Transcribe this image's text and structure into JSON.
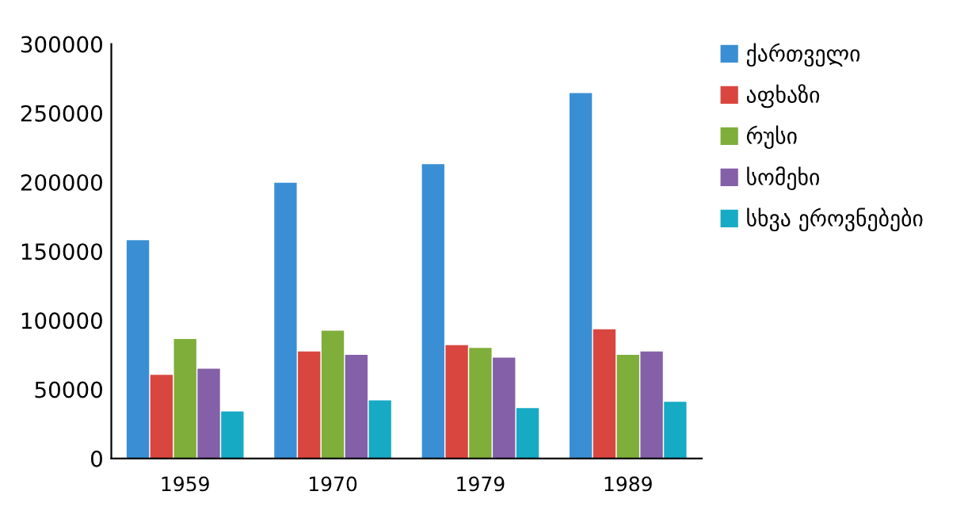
{
  "chart_data": {
    "type": "bar",
    "categories": [
      "1959",
      "1970",
      "1979",
      "1989"
    ],
    "series": [
      {
        "name": "ქართველი",
        "color": "#3a8fd4",
        "values": [
          158000,
          199500,
          213000,
          264500
        ]
      },
      {
        "name": "აფხაზი",
        "color": "#d9463f",
        "values": [
          60500,
          77500,
          82000,
          93500
        ]
      },
      {
        "name": "რუსი",
        "color": "#7fae3a",
        "values": [
          86500,
          92500,
          80000,
          75000
        ]
      },
      {
        "name": "სომეხი",
        "color": "#8460a8",
        "values": [
          65000,
          75000,
          73000,
          77500
        ]
      },
      {
        "name": "სხვა ეროვნებები",
        "color": "#17aac4",
        "values": [
          34000,
          42000,
          36500,
          41000
        ]
      }
    ],
    "ylim": [
      0,
      300000
    ],
    "yticks": [
      0,
      50000,
      100000,
      150000,
      200000,
      250000,
      300000
    ],
    "grid": false,
    "legend": "top right"
  }
}
